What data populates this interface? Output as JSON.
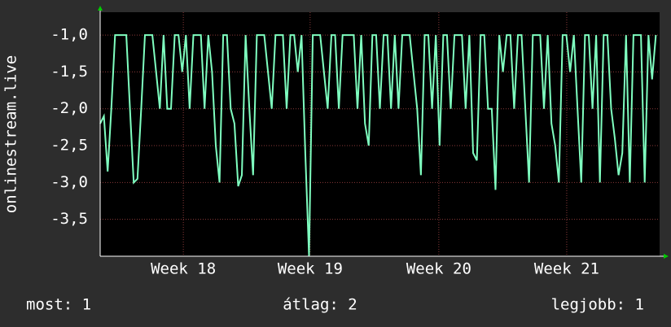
{
  "chart_data": {
    "type": "line",
    "y_label": "onlinestream.live",
    "xlim": [
      0,
      150
    ],
    "xticks": [
      {
        "value": 22.3,
        "label": "Week 18"
      },
      {
        "value": 56.3,
        "label": "Week 19"
      },
      {
        "value": 90.8,
        "label": "Week 20"
      },
      {
        "value": 125.1,
        "label": "Week 21"
      }
    ],
    "ylim": [
      -4.0,
      -0.69
    ],
    "yticks": [
      {
        "value": -1.0,
        "label": "-1,0"
      },
      {
        "value": -1.5,
        "label": "-1,5"
      },
      {
        "value": -2.0,
        "label": "-2,0"
      },
      {
        "value": -2.5,
        "label": "-2,5"
      },
      {
        "value": -3.0,
        "label": "-3,0"
      },
      {
        "value": -3.5,
        "label": "-3,5"
      }
    ],
    "grid": true,
    "series": [
      {
        "color": "#7fffc0",
        "x": [
          0,
          1,
          2,
          3,
          4,
          5,
          6,
          7,
          8,
          9,
          10,
          11,
          12,
          13,
          14,
          15,
          16,
          17,
          18,
          19,
          20,
          21,
          22,
          23,
          24,
          25,
          26,
          27,
          28,
          29,
          30,
          31,
          32,
          33,
          34,
          35,
          36,
          37,
          38,
          39,
          40,
          41,
          42,
          43,
          44,
          45,
          46,
          47,
          48,
          49,
          50,
          51,
          52,
          53,
          54,
          55,
          56,
          57,
          58,
          59,
          60,
          61,
          62,
          63,
          64,
          65,
          66,
          67,
          68,
          69,
          70,
          71,
          72,
          73,
          74,
          75,
          76,
          77,
          78,
          79,
          80,
          81,
          82,
          83,
          84,
          85,
          86,
          87,
          88,
          89,
          90,
          91,
          92,
          93,
          94,
          95,
          96,
          97,
          98,
          99,
          100,
          101,
          102,
          103,
          104,
          105,
          106,
          107,
          108,
          109,
          110,
          111,
          112,
          113,
          114,
          115,
          116,
          117,
          118,
          119,
          120,
          121,
          122,
          123,
          124,
          125,
          126,
          127,
          128,
          129,
          130,
          131,
          132,
          133,
          134,
          135,
          136,
          137,
          138,
          139,
          140,
          141,
          142,
          143,
          144,
          145,
          146,
          147,
          148,
          149
        ],
        "values": [
          -2.2,
          -2.1,
          -2.85,
          -2.0,
          -1.0,
          -1.0,
          -1.0,
          -1.0,
          -2.0,
          -3.0,
          -2.95,
          -2.0,
          -1.0,
          -1.0,
          -1.0,
          -1.5,
          -2.0,
          -1.0,
          -2.0,
          -2.0,
          -1.0,
          -1.0,
          -1.5,
          -1.0,
          -2.0,
          -1.0,
          -1.0,
          -1.0,
          -2.0,
          -1.0,
          -1.5,
          -2.5,
          -3.0,
          -1.0,
          -1.0,
          -2.0,
          -2.2,
          -3.05,
          -2.9,
          -1.0,
          -2.0,
          -2.9,
          -1.0,
          -1.0,
          -1.0,
          -1.5,
          -2.0,
          -1.0,
          -1.0,
          -1.0,
          -2.0,
          -1.0,
          -1.0,
          -1.5,
          -1.0,
          -2.6,
          -4.0,
          -1.0,
          -1.0,
          -1.0,
          -1.5,
          -2.0,
          -1.0,
          -1.0,
          -2.0,
          -1.0,
          -1.0,
          -1.0,
          -1.0,
          -2.0,
          -1.0,
          -2.2,
          -2.5,
          -1.0,
          -1.0,
          -2.0,
          -1.0,
          -1.0,
          -2.0,
          -1.0,
          -2.0,
          -1.0,
          -1.0,
          -1.0,
          -1.5,
          -2.0,
          -2.9,
          -1.0,
          -1.0,
          -2.0,
          -1.0,
          -2.5,
          -1.0,
          -1.0,
          -2.0,
          -1.0,
          -1.0,
          -1.0,
          -2.0,
          -1.0,
          -2.6,
          -2.7,
          -1.0,
          -1.0,
          -2.0,
          -2.0,
          -3.1,
          -1.0,
          -1.5,
          -1.0,
          -1.0,
          -2.0,
          -1.0,
          -1.0,
          -2.0,
          -3.0,
          -1.0,
          -1.0,
          -1.0,
          -2.0,
          -1.0,
          -2.2,
          -2.5,
          -3.0,
          -1.0,
          -1.0,
          -1.5,
          -1.0,
          -2.0,
          -3.0,
          -1.0,
          -1.0,
          -2.0,
          -1.0,
          -3.0,
          -1.0,
          -1.0,
          -2.0,
          -2.4,
          -2.9,
          -2.6,
          -1.0,
          -3.0,
          -1.0,
          -1.0,
          -1.0,
          -3.0,
          -1.0,
          -1.6,
          -1.0
        ]
      }
    ],
    "footer": [
      "most: 1",
      "átlag: 2",
      "legjobb: 1"
    ]
  }
}
